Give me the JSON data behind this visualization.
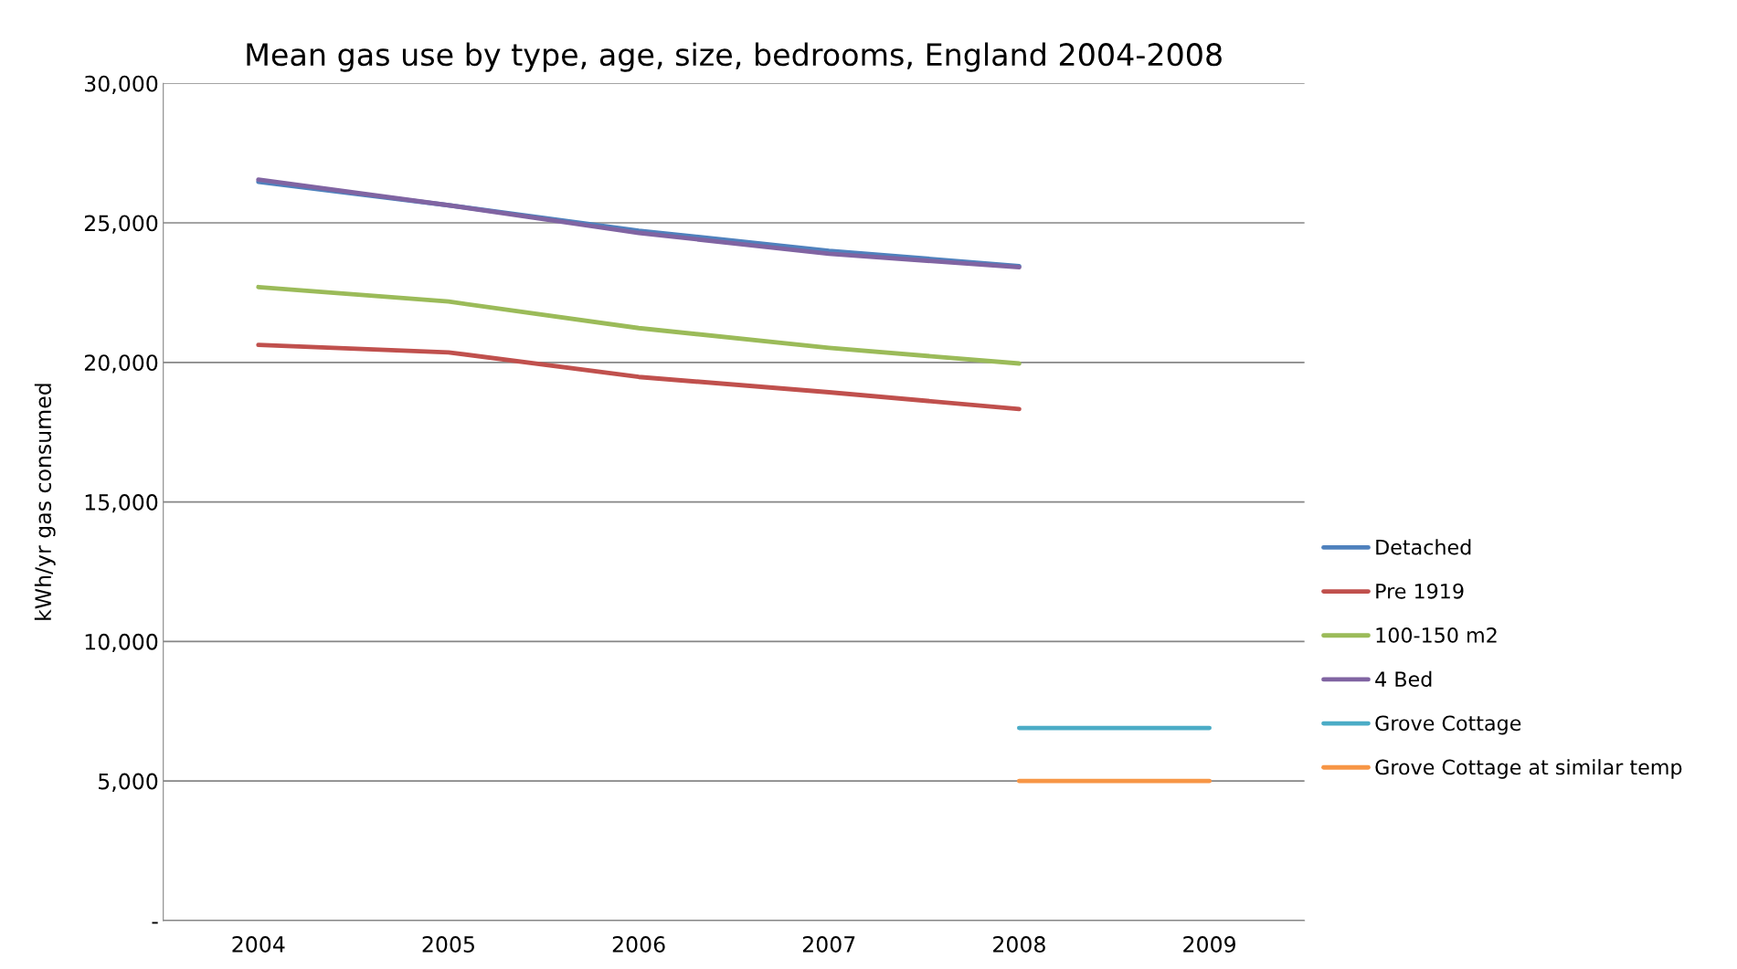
{
  "chart_data": {
    "type": "line",
    "title": "Mean gas use by type, age, size, bedrooms, England 2004-2008",
    "ylabel": "kWh/yr gas consumed",
    "categories": [
      "2004",
      "2005",
      "2006",
      "2007",
      "2008",
      "2009"
    ],
    "series": [
      {
        "name": "Detached",
        "color": "#4f81bd",
        "values": [
          26470,
          25630,
          24720,
          24000,
          23450,
          null
        ]
      },
      {
        "name": "Pre 1919",
        "color": "#c0504d",
        "values": [
          20630,
          20360,
          19480,
          18930,
          18330,
          null
        ]
      },
      {
        "name": "100-150 m2",
        "color": "#9bbb59",
        "values": [
          22700,
          22180,
          21230,
          20520,
          19960,
          null
        ]
      },
      {
        "name": "4 Bed",
        "color": "#8064a2",
        "values": [
          26550,
          25630,
          24640,
          23890,
          23410,
          null
        ]
      },
      {
        "name": "Grove Cottage",
        "color": "#4bacc6",
        "values": [
          null,
          null,
          null,
          null,
          6900,
          6900
        ]
      },
      {
        "name": "Grove Cottage at similar temp",
        "color": "#f79646",
        "values": [
          null,
          null,
          null,
          null,
          5000,
          5000
        ]
      }
    ],
    "ylim": [
      0,
      30000
    ],
    "yticks": [
      {
        "value": 0,
        "label": "-"
      },
      {
        "value": 5000,
        "label": "5,000"
      },
      {
        "value": 10000,
        "label": "10,000"
      },
      {
        "value": 15000,
        "label": "15,000"
      },
      {
        "value": 20000,
        "label": "20,000"
      },
      {
        "value": 25000,
        "label": "25,000"
      },
      {
        "value": 30000,
        "label": "30,000"
      }
    ],
    "grid": "y",
    "legend": "right",
    "marker": "none",
    "line_style": "solid"
  }
}
